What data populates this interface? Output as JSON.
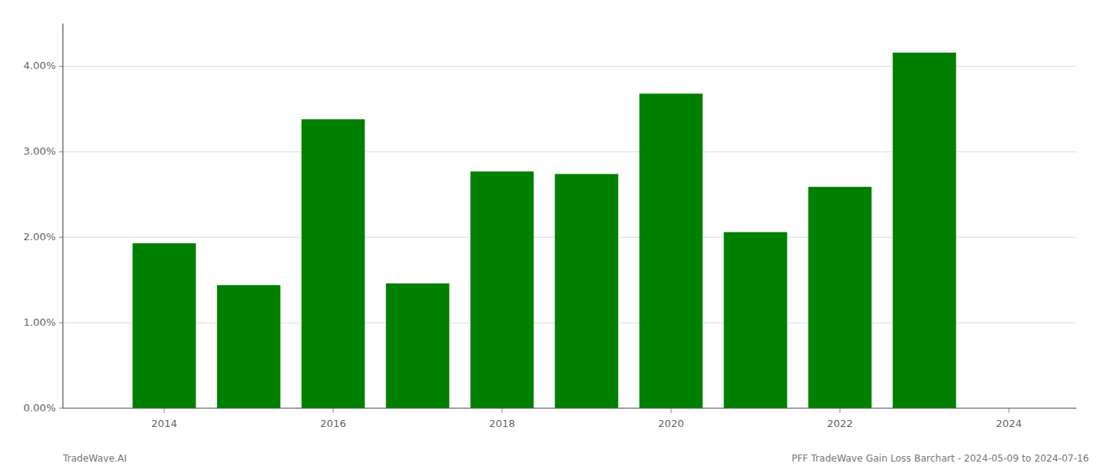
{
  "chart_data": {
    "type": "bar",
    "title": "PFF TradeWave Gain Loss Barchart - 2024-05-09 to 2024-07-16",
    "annotations": [
      "TradeWave.AI"
    ],
    "x": [
      2014,
      2015,
      2016,
      2017,
      2018,
      2019,
      2020,
      2021,
      2022,
      2023
    ],
    "values": [
      0.0193,
      0.0144,
      0.0338,
      0.0146,
      0.0277,
      0.0274,
      0.0368,
      0.0206,
      0.0259,
      0.0416
    ],
    "color": "#008000",
    "xlim": [
      2012.8,
      2024.8
    ],
    "xticks": [
      2014,
      2016,
      2018,
      2020,
      2022,
      2024
    ],
    "ylim": [
      0.0,
      0.045
    ],
    "yticks": [
      {
        "value": 0.0,
        "label": "0.00%"
      },
      {
        "value": 0.01,
        "label": "1.00%"
      },
      {
        "value": 0.02,
        "label": "2.00%"
      },
      {
        "value": 0.03,
        "label": "3.00%"
      },
      {
        "value": 0.04,
        "label": "4.00%"
      }
    ],
    "grid": true
  }
}
